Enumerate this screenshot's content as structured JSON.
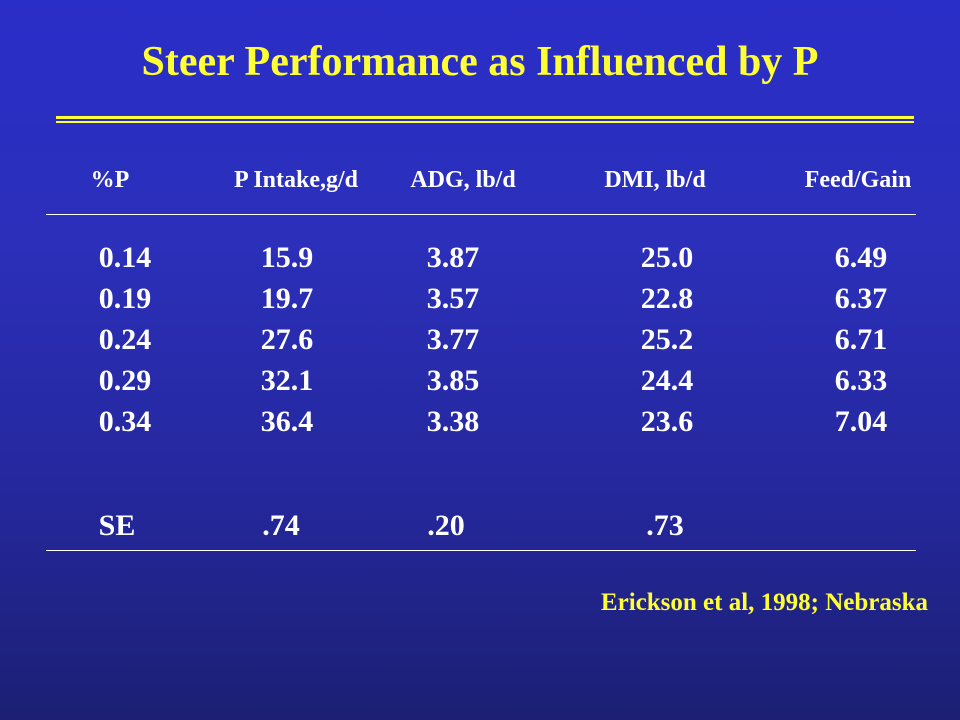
{
  "title": "Steer Performance as Influenced by P",
  "table": {
    "headers": [
      "%P",
      "P Intake,g/d",
      "ADG, lb/d",
      "DMI, lb/d",
      "Feed/Gain"
    ],
    "rows": [
      [
        "0.14",
        "15.9",
        "3.87",
        "25.0",
        "6.49"
      ],
      [
        "0.19",
        "19.7",
        "3.57",
        "22.8",
        "6.37"
      ],
      [
        "0.24",
        "27.6",
        "3.77",
        "25.2",
        "6.71"
      ],
      [
        "0.29",
        "32.1",
        "3.85",
        "24.4",
        "6.33"
      ],
      [
        "0.34",
        "36.4",
        "3.38",
        "23.6",
        "7.04"
      ]
    ],
    "se_row": [
      "SE",
      ".74",
      ".20",
      ".73",
      ""
    ]
  },
  "citation": "Erickson et al, 1998; Nebraska",
  "colors": {
    "title": "#ffff33",
    "text": "#ffffff",
    "background_top": "#2a2ec8",
    "background_bottom": "#1c1f73"
  }
}
